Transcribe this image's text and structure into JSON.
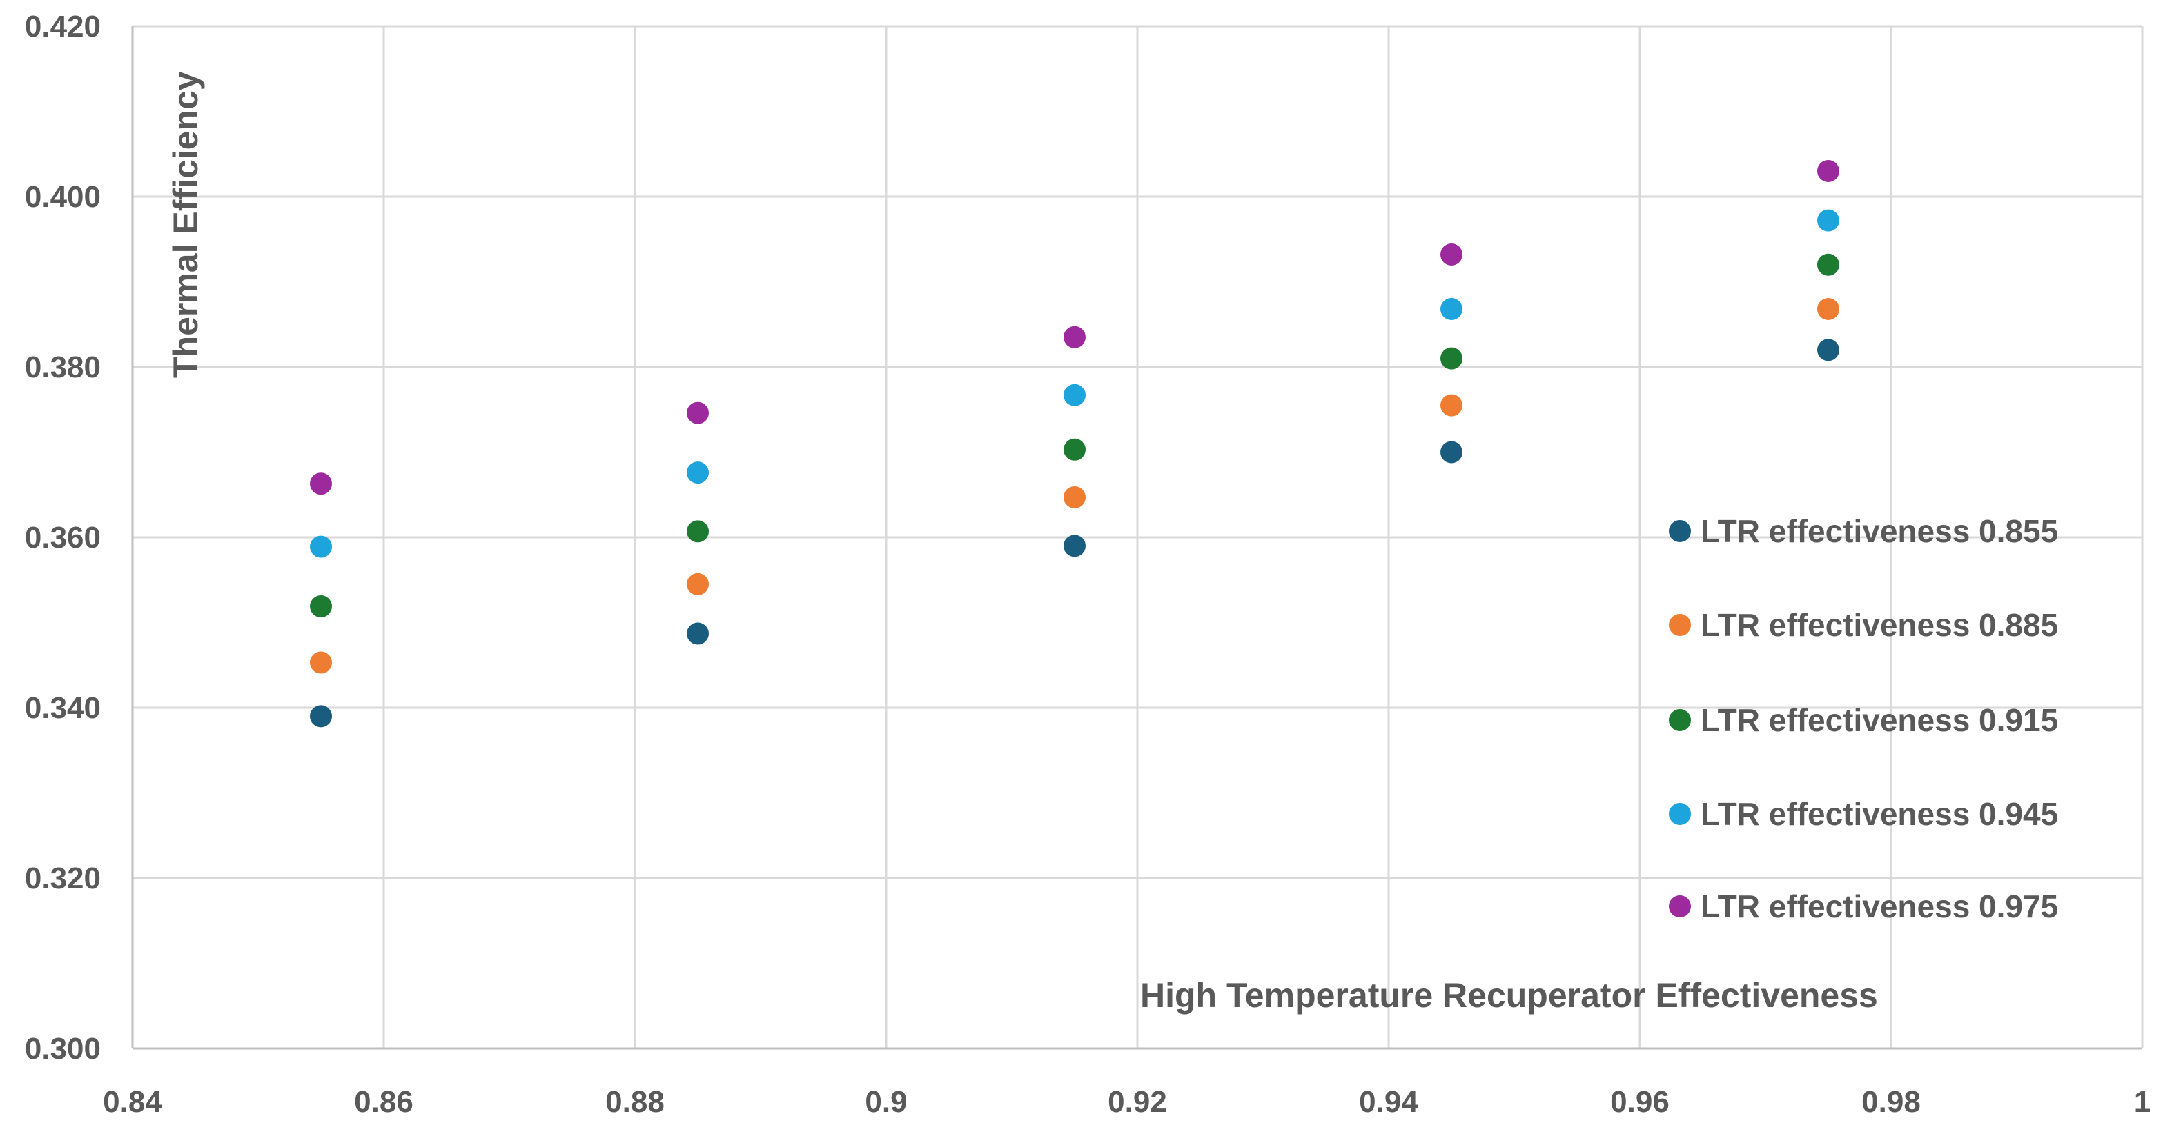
{
  "chart_data": {
    "type": "scatter",
    "title": "",
    "xlabel": "High Temperature Recuperator Effectiveness",
    "ylabel": "Thermal Efficiency",
    "xlim": [
      0.84,
      1
    ],
    "ylim": [
      0.3,
      0.42
    ],
    "x_ticks": [
      "0.84",
      "0.86",
      "0.88",
      "0.9",
      "0.92",
      "0.94",
      "0.96",
      "0.98",
      "1"
    ],
    "x_tick_values": [
      0.84,
      0.86,
      0.88,
      0.9,
      0.92,
      0.94,
      0.96,
      0.98,
      1.0
    ],
    "y_ticks": [
      "0.300",
      "0.320",
      "0.340",
      "0.360",
      "0.380",
      "0.400",
      "0.420"
    ],
    "y_tick_values": [
      0.3,
      0.32,
      0.34,
      0.36,
      0.38,
      0.4,
      0.42
    ],
    "grid": true,
    "legend_position": "right",
    "x": [
      0.855,
      0.885,
      0.915,
      0.945,
      0.975
    ],
    "series": [
      {
        "name": "LTR effectiveness 0.855",
        "color": "#1a5c7e",
        "values": [
          0.339,
          0.3487,
          0.359,
          0.37,
          0.382
        ]
      },
      {
        "name": "LTR effectiveness 0.885",
        "color": "#ee7d32",
        "values": [
          0.3453,
          0.3545,
          0.3647,
          0.3755,
          0.3868
        ]
      },
      {
        "name": "LTR effectiveness 0.915",
        "color": "#1c7a31",
        "values": [
          0.3519,
          0.3607,
          0.3703,
          0.381,
          0.392
        ]
      },
      {
        "name": "LTR effectiveness 0.945",
        "color": "#1ea4dc",
        "values": [
          0.3589,
          0.3676,
          0.3767,
          0.3868,
          0.3972
        ]
      },
      {
        "name": "LTR effectiveness 0.975",
        "color": "#9d2a9d",
        "values": [
          0.3663,
          0.3746,
          0.3835,
          0.3932,
          0.403
        ]
      }
    ]
  }
}
